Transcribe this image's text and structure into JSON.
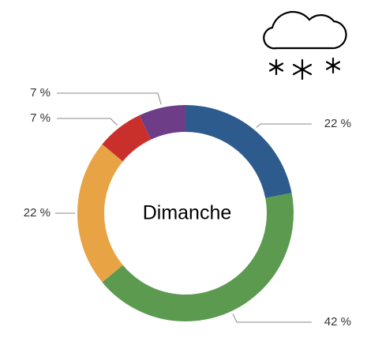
{
  "chart_data": {
    "type": "donut",
    "title": "Dimanche",
    "categories": [
      null,
      null,
      null,
      null,
      null
    ],
    "values": [
      22,
      42,
      22,
      7,
      7
    ],
    "value_labels": [
      "22 %",
      "42 %",
      "22 %",
      "7 %",
      "7 %"
    ],
    "colors": [
      "#2e5b8e",
      "#5b9a4f",
      "#e8a444",
      "#c9302c",
      "#6e3d87"
    ]
  }
}
